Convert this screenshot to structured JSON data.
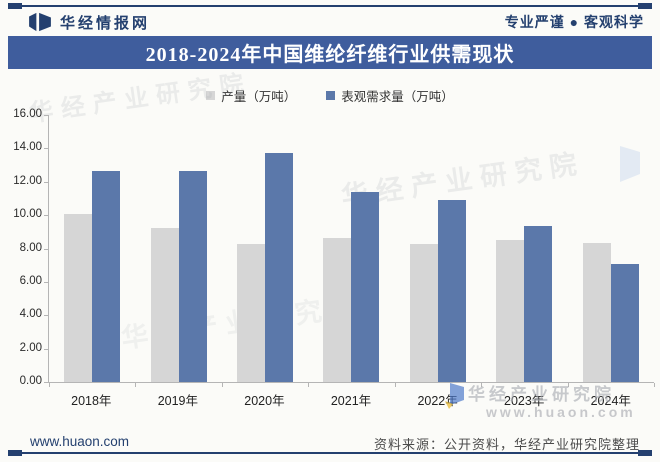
{
  "header": {
    "site_name": "华经情报网",
    "tagline": "专业严谨 ● 客观科学"
  },
  "title": "2018-2024年中国维纶纤维行业供需现状",
  "chart_data": {
    "type": "bar",
    "title": "2018-2024年中国维纶纤维行业供需现状",
    "categories": [
      "2018年",
      "2019年",
      "2020年",
      "2021年",
      "2022年",
      "2023年",
      "2024年"
    ],
    "series": [
      {
        "name": "产量（万吨）",
        "color": "#d6d6d6",
        "values": [
          10.05,
          9.2,
          8.3,
          8.65,
          8.25,
          8.5,
          8.35
        ]
      },
      {
        "name": "表观需求量（万吨）",
        "color": "#5b78aa",
        "values": [
          12.65,
          12.65,
          13.7,
          11.4,
          10.9,
          9.35,
          7.1
        ]
      }
    ],
    "xlabel": "",
    "ylabel": "",
    "ylim": [
      0,
      16
    ],
    "ytick_step": 2,
    "yticks": [
      "16.00",
      "14.00",
      "12.00",
      "10.00",
      "8.00",
      "6.00",
      "4.00",
      "2.00",
      "0.00"
    ],
    "grid": false,
    "legend_position": "top"
  },
  "watermark": {
    "brand": "华经产业研究院",
    "url": "www.huaon.com"
  },
  "footer": {
    "url": "www.huaon.com",
    "source": "资料来源：公开资料，华经产业研究院整理"
  },
  "colors": {
    "navy": "#24406f",
    "title_bar_bg": "#3f5d9d",
    "bar_production": "#d6d6d6",
    "bar_demand": "#5b78aa",
    "axis": "#b5b5b5"
  }
}
